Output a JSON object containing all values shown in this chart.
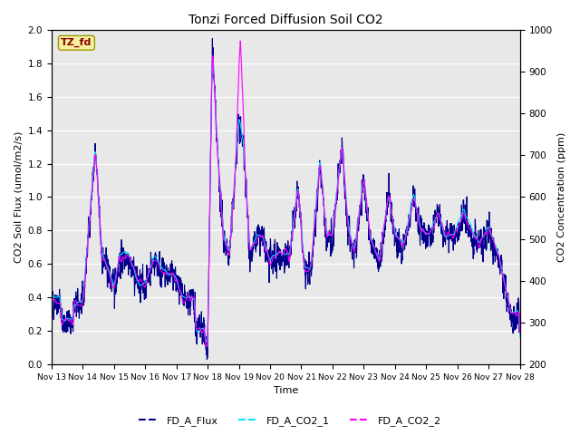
{
  "title": "Tonzi Forced Diffusion Soil CO2",
  "xlabel": "Time",
  "ylabel_left": "CO2 Soil Flux (umol/m2/s)",
  "ylabel_right": "CO2 Concentration (ppm)",
  "ylim_left": [
    0.0,
    2.0
  ],
  "ylim_right": [
    200,
    1000
  ],
  "xlim_days": [
    13,
    28
  ],
  "site_label": "TZ_fd",
  "site_label_color": "#8b0000",
  "site_label_bg": "#f5f0a0",
  "bg_color": "#e8e8e8",
  "legend_entries": [
    "FD_A_Flux",
    "FD_A_CO2_1",
    "FD_A_CO2_2"
  ],
  "colors": [
    "#00008b",
    "#00e5ff",
    "#ff00ff"
  ],
  "linewidths": [
    0.8,
    0.8,
    0.8
  ],
  "xtick_labels": [
    "Nov 13",
    "Nov 14",
    "Nov 15",
    "Nov 16",
    "Nov 17",
    "Nov 18",
    "Nov 19",
    "Nov 20",
    "Nov 21",
    "Nov 22",
    "Nov 23",
    "Nov 24",
    "Nov 25",
    "Nov 26",
    "Nov 27",
    "Nov 28"
  ],
  "xtick_positions": [
    13,
    14,
    15,
    16,
    17,
    18,
    19,
    20,
    21,
    22,
    23,
    24,
    25,
    26,
    27,
    28
  ]
}
